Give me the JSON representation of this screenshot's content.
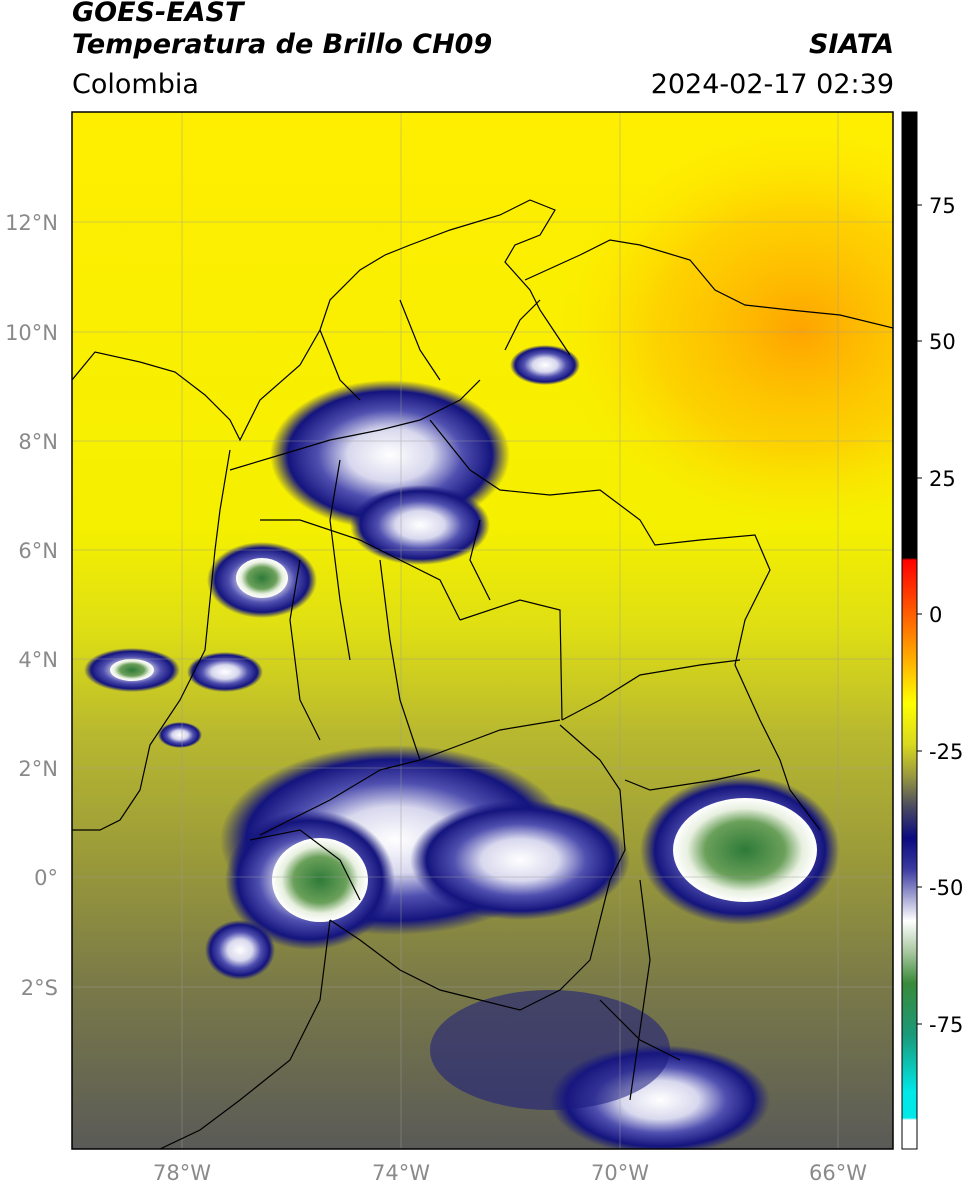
{
  "header": {
    "satellite": "GOES-EAST",
    "product": "Temperatura de Brillo CH09",
    "organization": "SIATA",
    "region": "Colombia",
    "datetime": "2024-02-17 02:39"
  },
  "map": {
    "lon_range": [
      -80.0,
      -65.0
    ],
    "lat_range": [
      -5.0,
      14.0
    ],
    "lat_ticks": [
      "12°N",
      "10°N",
      "8°N",
      "6°N",
      "4°N",
      "2°N",
      "0°",
      "2°S"
    ],
    "lon_ticks": [
      "78°W",
      "74°W",
      "70°W",
      "66°W"
    ],
    "gridlines": true
  },
  "colorbar": {
    "units_range": [
      -95,
      90
    ],
    "tick_labels": [
      "75",
      "50",
      "25",
      "0",
      "-25",
      "-50",
      "-75"
    ],
    "colors": {
      "warm_top": "#000000",
      "zero": "#ff3300",
      "yellow": "#ffff00",
      "olive": "#a8a838",
      "navy": "#10107a",
      "white": "#ffffff",
      "green": "#3a8a3a",
      "cyan": "#00e0e0"
    }
  }
}
